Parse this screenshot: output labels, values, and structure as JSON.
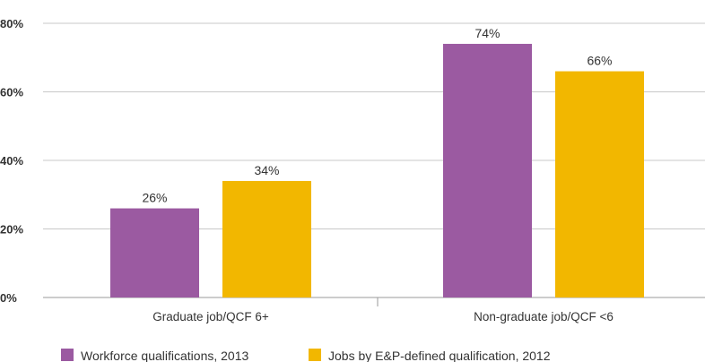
{
  "chart_data": {
    "type": "bar",
    "categories": [
      "Graduate job/QCF 6+",
      "Non-graduate job/QCF <6"
    ],
    "series": [
      {
        "name": "Workforce qualifications, 2013",
        "values": [
          26,
          74
        ],
        "color": "#9b5aa1",
        "labels": [
          "26%",
          "74%"
        ]
      },
      {
        "name": "Jobs by E&P-defined qualification, 2012",
        "values": [
          34,
          66
        ],
        "color": "#f2b700",
        "labels": [
          "34%",
          "66%"
        ]
      }
    ],
    "ylim": [
      0,
      80
    ],
    "yticks": [
      {
        "value": 0,
        "label": "0%"
      },
      {
        "value": 20,
        "label": "20%"
      },
      {
        "value": 40,
        "label": "40%"
      },
      {
        "value": 60,
        "label": "60%"
      },
      {
        "value": 80,
        "label": "80%"
      }
    ],
    "grid": true,
    "legend": "bottom-left",
    "title": "",
    "xlabel": "",
    "ylabel": ""
  }
}
